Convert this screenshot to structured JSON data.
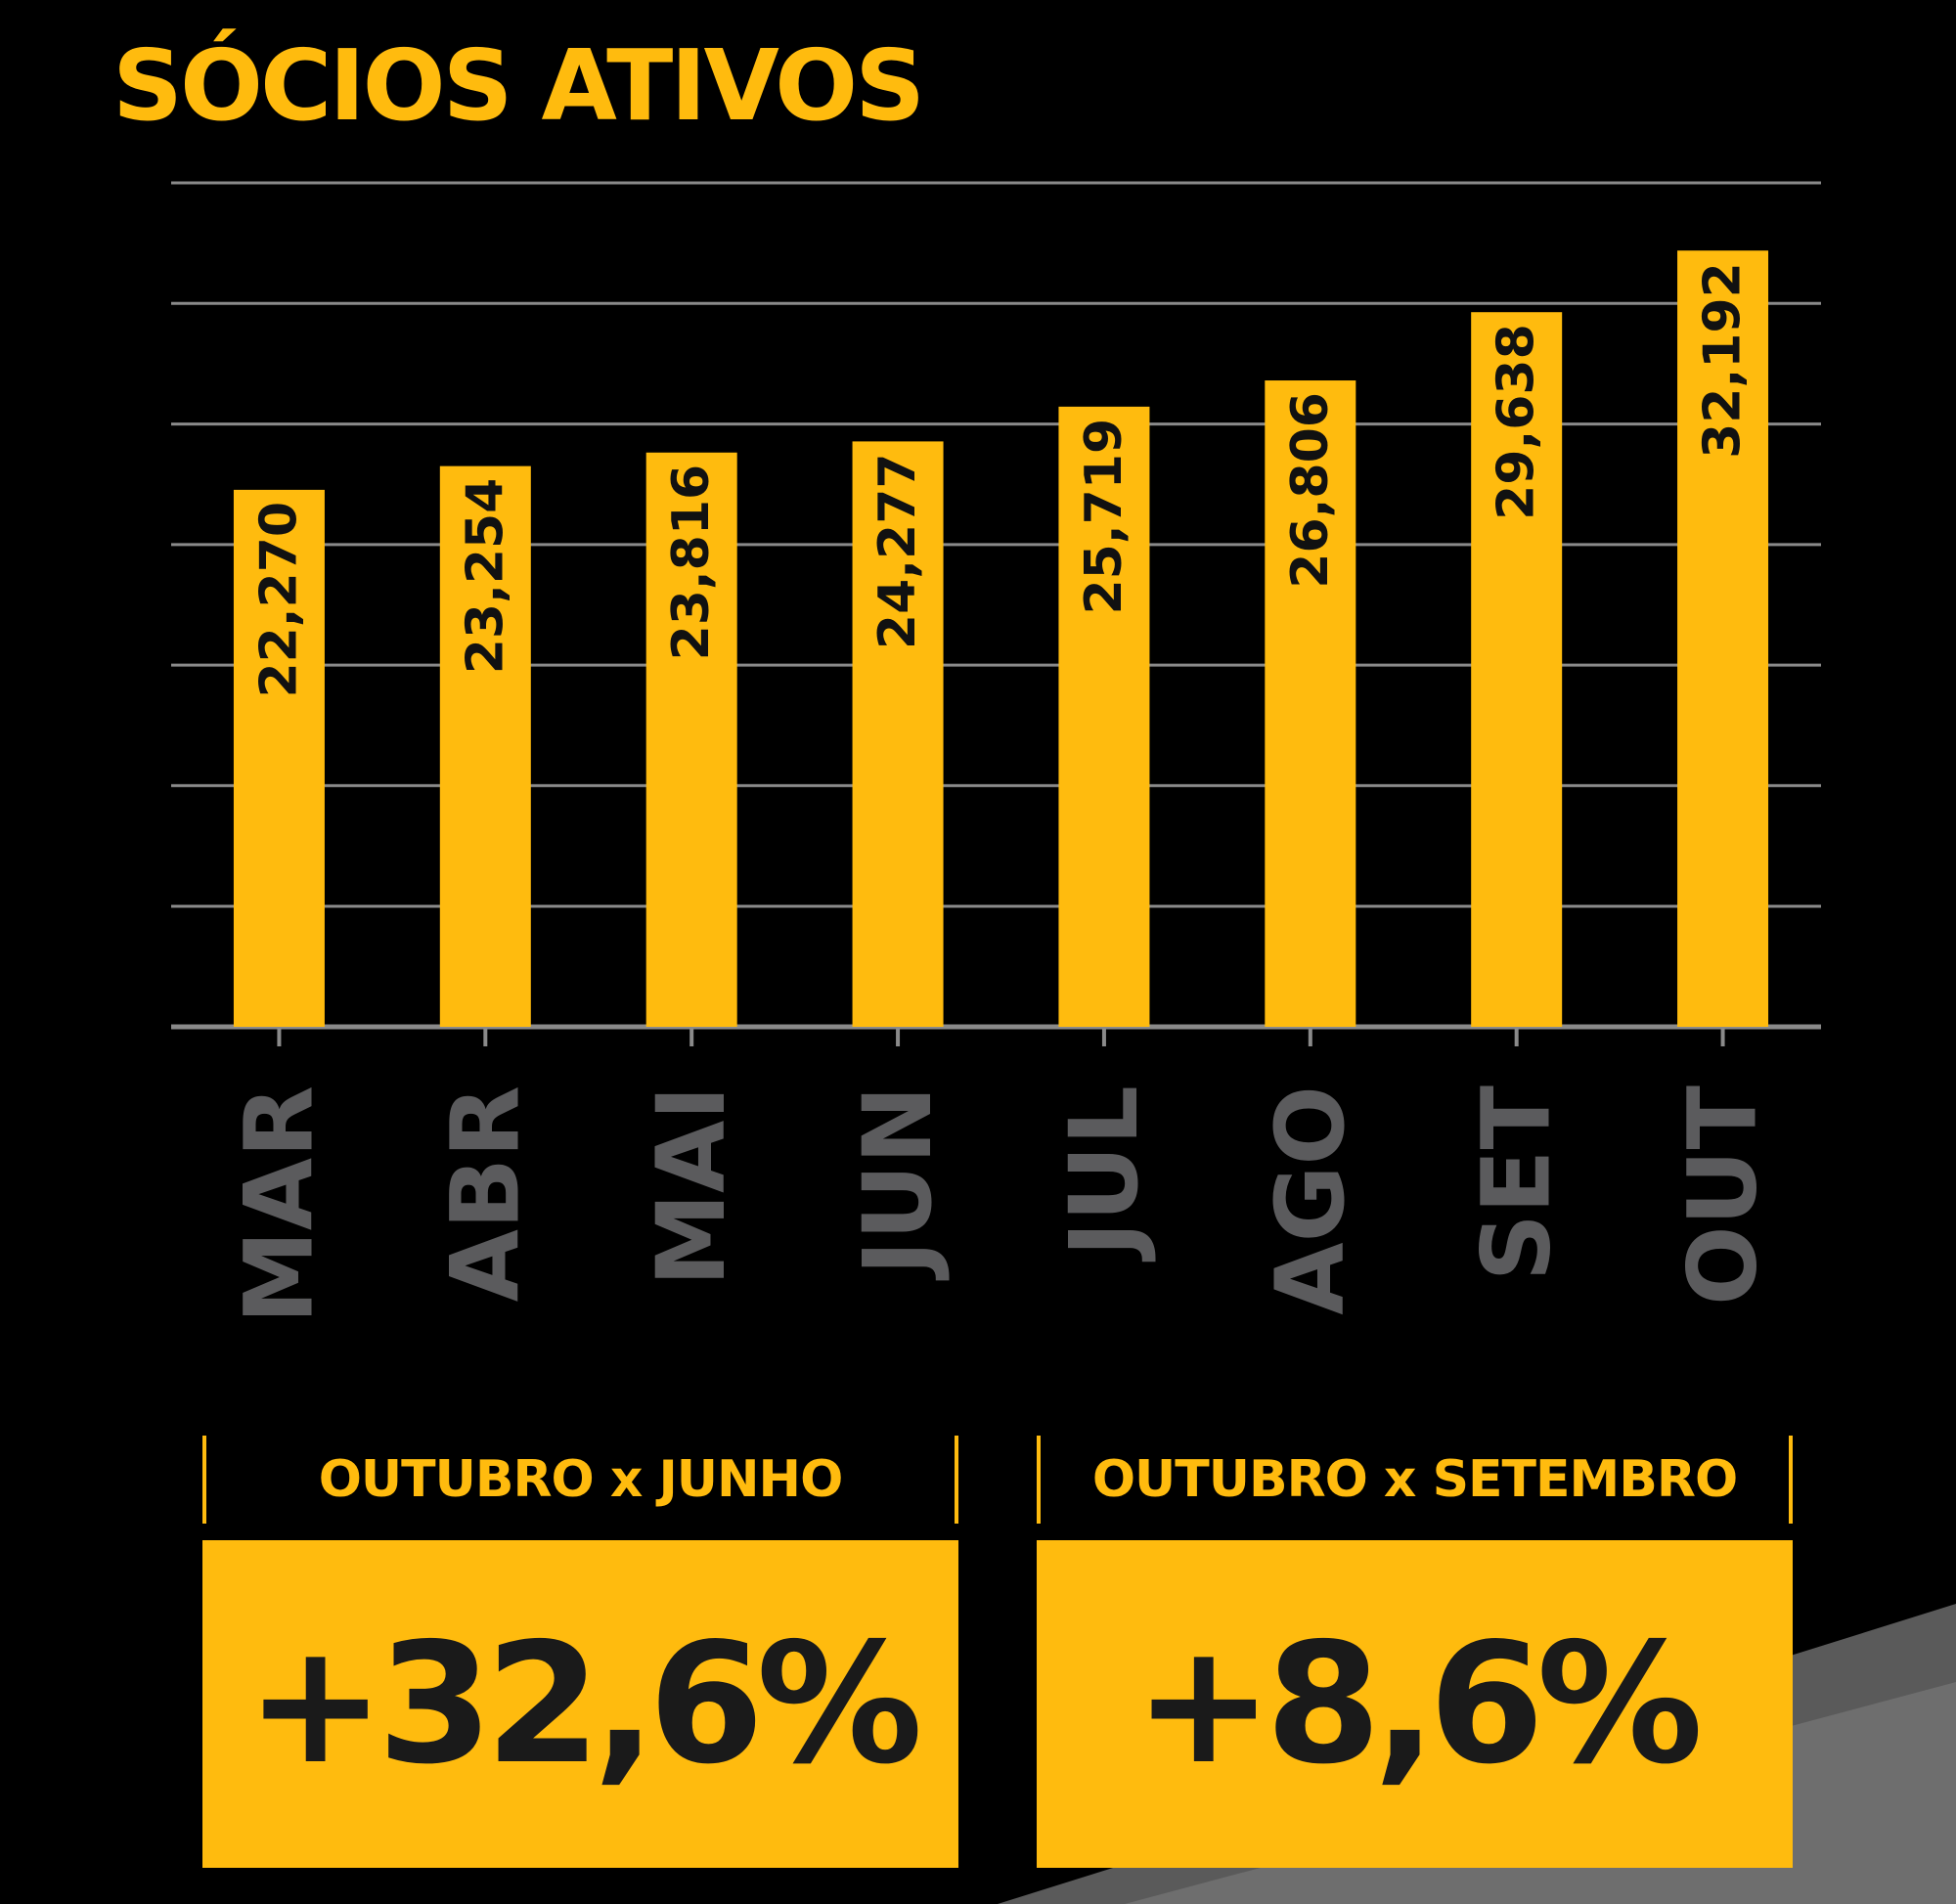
{
  "title": "SÓCIOS ATIVOS",
  "colors": {
    "background": "#000000",
    "bar": "#FFBB0E",
    "grid": "#8A8A8A",
    "category_label": "#5B5B5D",
    "value_label": "#111111"
  },
  "chart_data": {
    "type": "bar",
    "title": "SÓCIOS ATIVOS",
    "categories": [
      "MAR",
      "ABR",
      "MAI",
      "JUN",
      "JUL",
      "AGO",
      "SET",
      "OUT"
    ],
    "values": [
      22270,
      23254,
      23816,
      24277,
      25719,
      26806,
      29638,
      32192
    ],
    "value_labels": [
      "22,270",
      "23,254",
      "23,816",
      "24,277",
      "25,719",
      "26,806",
      "29,638",
      "32,192"
    ],
    "ylim": [
      0,
      35000
    ],
    "grid": true,
    "legend": "none"
  },
  "comparisons": [
    {
      "label": "OUTUBRO x JUNHO",
      "value": "+32,6%"
    },
    {
      "label": "OUTUBRO x SETEMBRO",
      "value": "+8,6%"
    }
  ]
}
